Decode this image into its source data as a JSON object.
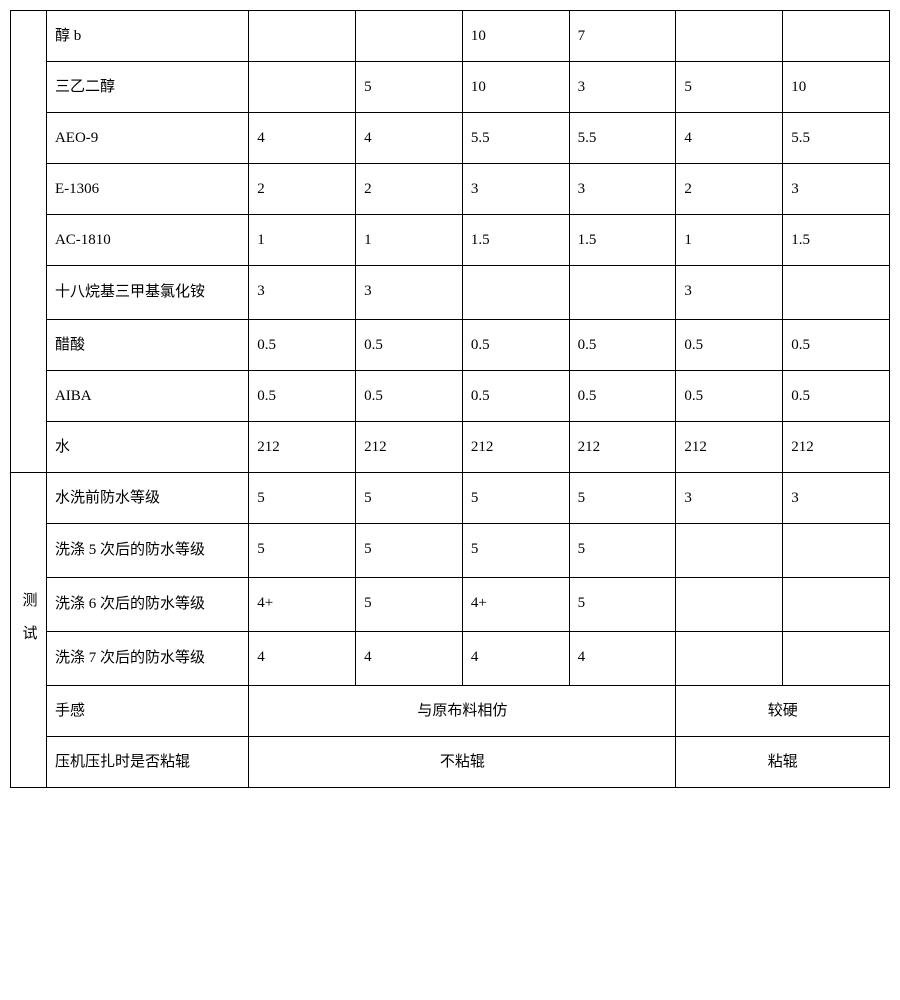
{
  "section1": {
    "rows": [
      {
        "name": "醇 b",
        "v": [
          "",
          "",
          "10",
          "7",
          "",
          ""
        ]
      },
      {
        "name": "三乙二醇",
        "v": [
          "",
          "5",
          "10",
          "3",
          "5",
          "10"
        ]
      },
      {
        "name": "AEO-9",
        "v": [
          "4",
          "4",
          "5.5",
          "5.5",
          "4",
          "5.5"
        ]
      },
      {
        "name": "E-1306",
        "v": [
          "2",
          "2",
          "3",
          "3",
          "2",
          "3"
        ]
      },
      {
        "name": "AC-1810",
        "v": [
          "1",
          "1",
          "1.5",
          "1.5",
          "1",
          "1.5"
        ]
      },
      {
        "name": "十八烷基三甲基氯化铵",
        "v": [
          "3",
          "3",
          "",
          "",
          "3",
          ""
        ]
      },
      {
        "name": "醋酸",
        "v": [
          "0.5",
          "0.5",
          "0.5",
          "0.5",
          "0.5",
          "0.5"
        ]
      },
      {
        "name": "AIBA",
        "v": [
          "0.5",
          "0.5",
          "0.5",
          "0.5",
          "0.5",
          "0.5"
        ]
      },
      {
        "name": "水",
        "v": [
          "212",
          "212",
          "212",
          "212",
          "212",
          "212"
        ]
      }
    ]
  },
  "section2": {
    "label": "测试",
    "rows": [
      {
        "name": "水洗前防水等级",
        "v": [
          "5",
          "5",
          "5",
          "5",
          "3",
          "3"
        ]
      },
      {
        "name": "洗涤 5 次后的防水等级",
        "v": [
          "5",
          "5",
          "5",
          "5",
          "",
          ""
        ]
      },
      {
        "name": "洗涤 6 次后的防水等级",
        "v": [
          "4+",
          "5",
          "4+",
          "5",
          "",
          ""
        ]
      },
      {
        "name": "洗涤 7 次后的防水等级",
        "v": [
          "4",
          "4",
          "4",
          "4",
          "",
          ""
        ]
      }
    ],
    "merged": [
      {
        "name": "手感",
        "left": "与原布料相仿",
        "right": "较硬"
      },
      {
        "name": "压机压扎时是否粘辊",
        "left": "不粘辊",
        "right": "粘辊"
      }
    ]
  },
  "style": {
    "border_color": "#000000",
    "background_color": "#ffffff",
    "text_color": "#000000",
    "font_size": 15,
    "col_widths": {
      "label": 32,
      "name": 180,
      "value": 95
    },
    "line_height": 2.0
  }
}
